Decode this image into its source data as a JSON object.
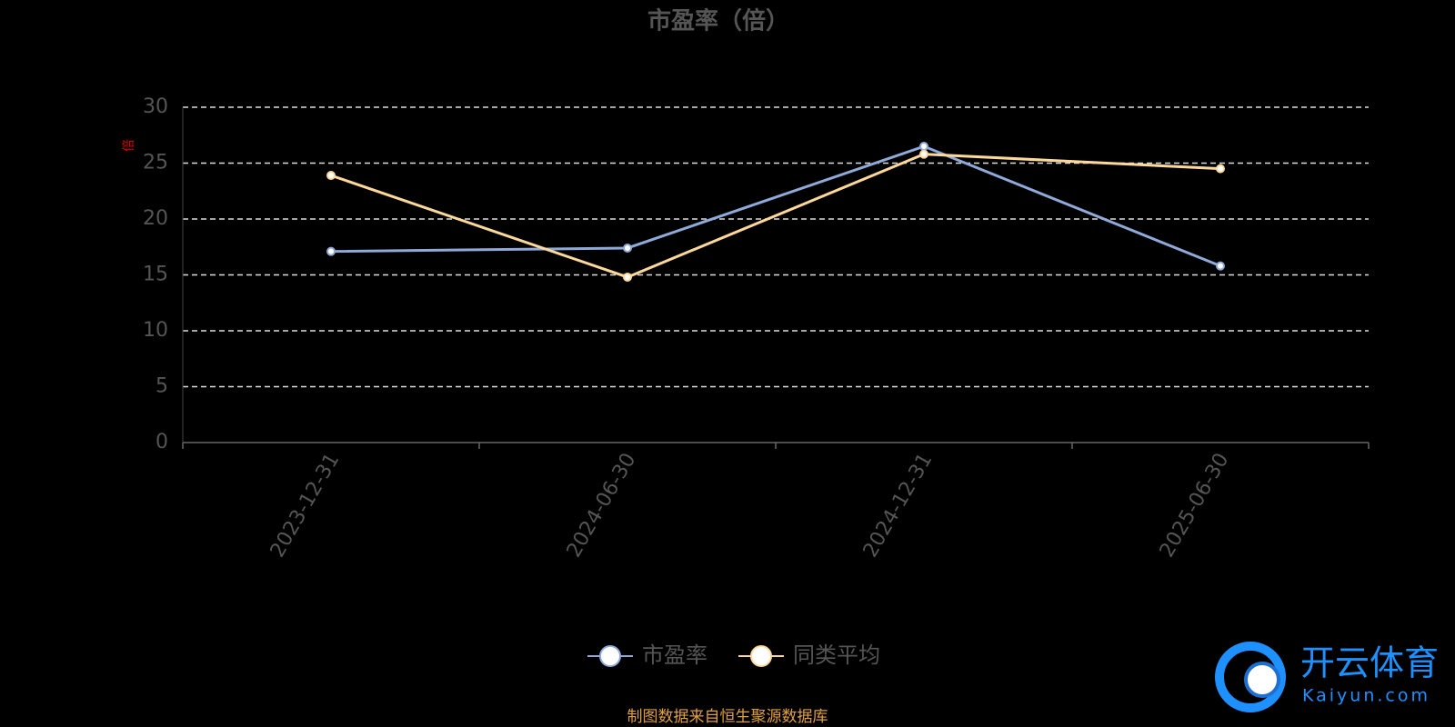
{
  "chart_data": {
    "type": "line",
    "title": "市盈率（倍）",
    "y_label": "倍",
    "categories": [
      "2023-12-31",
      "2024-06-30",
      "2024-12-31",
      "2025-06-30"
    ],
    "series": [
      {
        "name": "市盈率",
        "color": "#8fa9d8",
        "values": [
          17.1,
          17.4,
          26.5,
          15.8
        ]
      },
      {
        "name": "同类平均",
        "color": "#fcd89a",
        "values": [
          23.9,
          14.8,
          25.8,
          24.5
        ]
      }
    ],
    "ylim": [
      0,
      30
    ],
    "yticks": [
      0,
      5,
      10,
      15,
      20,
      25,
      30
    ],
    "grid": true,
    "legend": "bottom",
    "source": "制图数据来自恒生聚源数据库",
    "watermark": {
      "brand": "开云体育",
      "site": "Kaiyun.com"
    }
  }
}
